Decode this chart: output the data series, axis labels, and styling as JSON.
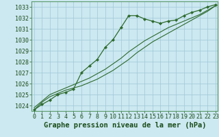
{
  "title": "Graphe pression niveau de la mer (hPa)",
  "bg_color": "#cce8f0",
  "grid_color": "#9dc8d8",
  "line_color": "#2d6a2d",
  "x_values": [
    0,
    1,
    2,
    3,
    4,
    5,
    6,
    7,
    8,
    9,
    10,
    11,
    12,
    13,
    14,
    15,
    16,
    17,
    18,
    19,
    20,
    21,
    22,
    23
  ],
  "y_main": [
    1023.6,
    1024.1,
    1024.5,
    1025.0,
    1025.2,
    1025.5,
    1027.0,
    1027.6,
    1028.2,
    1029.3,
    1030.0,
    1031.1,
    1032.2,
    1032.2,
    1031.9,
    1031.7,
    1031.5,
    1031.7,
    1031.8,
    1032.2,
    1032.5,
    1032.7,
    1033.0,
    1033.2
  ],
  "y_trend1": [
    1023.6,
    1024.3,
    1024.8,
    1025.1,
    1025.4,
    1025.6,
    1025.8,
    1026.1,
    1026.4,
    1026.8,
    1027.2,
    1027.7,
    1028.2,
    1028.8,
    1029.3,
    1029.8,
    1030.2,
    1030.6,
    1031.0,
    1031.4,
    1031.8,
    1032.2,
    1032.6,
    1033.1
  ],
  "y_trend2": [
    1023.8,
    1024.4,
    1025.0,
    1025.3,
    1025.6,
    1025.9,
    1026.2,
    1026.5,
    1026.9,
    1027.3,
    1027.8,
    1028.3,
    1028.9,
    1029.4,
    1029.9,
    1030.3,
    1030.7,
    1031.1,
    1031.4,
    1031.7,
    1032.0,
    1032.3,
    1032.7,
    1033.1
  ],
  "ylim": [
    1023.5,
    1033.5
  ],
  "yticks": [
    1024,
    1025,
    1026,
    1027,
    1028,
    1029,
    1030,
    1031,
    1032,
    1033
  ],
  "xticks": [
    0,
    1,
    2,
    3,
    4,
    5,
    6,
    7,
    8,
    9,
    10,
    11,
    12,
    13,
    14,
    15,
    16,
    17,
    18,
    19,
    20,
    21,
    22,
    23
  ],
  "xlim": [
    -0.3,
    23.3
  ],
  "title_fontsize": 7.5,
  "tick_fontsize": 6,
  "title_color": "#1a4d1a",
  "tick_color": "#1a4d1a",
  "spine_color": "#5a9a6a"
}
